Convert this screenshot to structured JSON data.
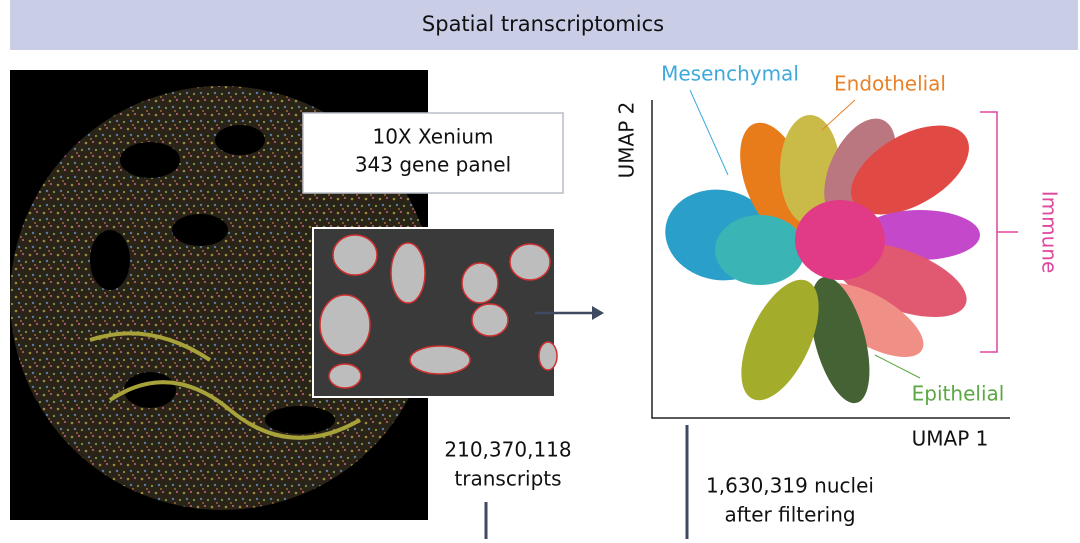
{
  "header": {
    "title": "Spatial transcriptomics"
  },
  "platform": {
    "line1": "10X Xenium",
    "line2": "343 gene panel"
  },
  "transcripts": {
    "count": "210,370,118",
    "label": "transcripts"
  },
  "nuclei": {
    "count": "1,630,319 nuclei",
    "label": "after filtering"
  },
  "umap": {
    "x_label": "UMAP 1",
    "y_label": "UMAP 2",
    "clusters": [
      {
        "label": "Mesenchymal",
        "color": "#3fa9dc"
      },
      {
        "label": "Endothelial",
        "color": "#e8822a"
      },
      {
        "label": "Immune",
        "color": "#e0479e"
      },
      {
        "label": "Epithelial",
        "color": "#5aa843"
      }
    ]
  }
}
